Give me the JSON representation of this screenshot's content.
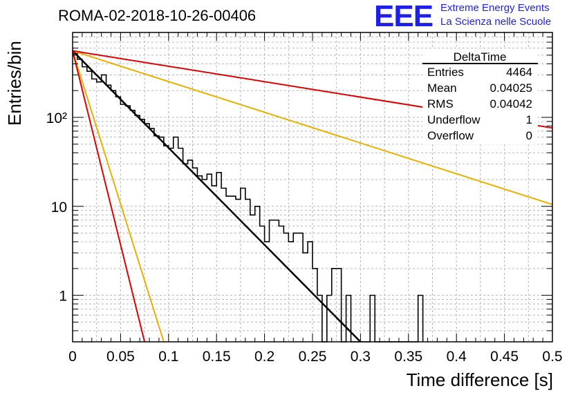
{
  "title": "ROMA-02-2018-10-26-00406",
  "logo": {
    "text": "EEE",
    "line1": "Extreme Energy Events",
    "line2": "La Scienza nelle Scuole",
    "color": "#1f1fe8"
  },
  "stats_box": {
    "name": "DeltaTime",
    "rows": [
      {
        "label": "Entries",
        "value": "4464"
      },
      {
        "label": "Mean",
        "value": "0.04025"
      },
      {
        "label": "RMS",
        "value": "0.04042"
      },
      {
        "label": "Underflow",
        "value": "1"
      },
      {
        "label": "Overflow",
        "value": "0"
      }
    ]
  },
  "chart_data": {
    "type": "histogram",
    "title": "ROMA-02-2018-10-26-00406",
    "xlabel": "Time difference [s]",
    "ylabel": "Entries/bin",
    "xlim": [
      0,
      0.5
    ],
    "ylim": [
      0.3,
      900
    ],
    "log_y": true,
    "grid": true,
    "x_ticks": [
      "0",
      "0.05",
      "0.1",
      "0.15",
      "0.2",
      "0.25",
      "0.3",
      "0.35",
      "0.4",
      "0.45",
      "0.5"
    ],
    "y_ticks": [
      "1",
      "10",
      "10²"
    ],
    "bin_width": 0.005,
    "bins": [
      {
        "x0": 0.0,
        "y": 520
      },
      {
        "x0": 0.005,
        "y": 450
      },
      {
        "x0": 0.01,
        "y": 370
      },
      {
        "x0": 0.015,
        "y": 330
      },
      {
        "x0": 0.02,
        "y": 270
      },
      {
        "x0": 0.025,
        "y": 250
      },
      {
        "x0": 0.03,
        "y": 300
      },
      {
        "x0": 0.035,
        "y": 230
      },
      {
        "x0": 0.04,
        "y": 200
      },
      {
        "x0": 0.045,
        "y": 170
      },
      {
        "x0": 0.05,
        "y": 140
      },
      {
        "x0": 0.055,
        "y": 135
      },
      {
        "x0": 0.06,
        "y": 120
      },
      {
        "x0": 0.065,
        "y": 105
      },
      {
        "x0": 0.07,
        "y": 95
      },
      {
        "x0": 0.075,
        "y": 85
      },
      {
        "x0": 0.08,
        "y": 75
      },
      {
        "x0": 0.085,
        "y": 62
      },
      {
        "x0": 0.09,
        "y": 60
      },
      {
        "x0": 0.095,
        "y": 48
      },
      {
        "x0": 0.1,
        "y": 45
      },
      {
        "x0": 0.105,
        "y": 60
      },
      {
        "x0": 0.11,
        "y": 45
      },
      {
        "x0": 0.115,
        "y": 30
      },
      {
        "x0": 0.12,
        "y": 33
      },
      {
        "x0": 0.125,
        "y": 27
      },
      {
        "x0": 0.13,
        "y": 22
      },
      {
        "x0": 0.135,
        "y": 20
      },
      {
        "x0": 0.14,
        "y": 23
      },
      {
        "x0": 0.145,
        "y": 17
      },
      {
        "x0": 0.15,
        "y": 24
      },
      {
        "x0": 0.155,
        "y": 16
      },
      {
        "x0": 0.16,
        "y": 13
      },
      {
        "x0": 0.165,
        "y": 13
      },
      {
        "x0": 0.17,
        "y": 12
      },
      {
        "x0": 0.175,
        "y": 16
      },
      {
        "x0": 0.18,
        "y": 12
      },
      {
        "x0": 0.185,
        "y": 8
      },
      {
        "x0": 0.19,
        "y": 10
      },
      {
        "x0": 0.195,
        "y": 6
      },
      {
        "x0": 0.2,
        "y": 4
      },
      {
        "x0": 0.205,
        "y": 7
      },
      {
        "x0": 0.21,
        "y": 7
      },
      {
        "x0": 0.215,
        "y": 6
      },
      {
        "x0": 0.22,
        "y": 5
      },
      {
        "x0": 0.225,
        "y": 4
      },
      {
        "x0": 0.23,
        "y": 5
      },
      {
        "x0": 0.235,
        "y": 5
      },
      {
        "x0": 0.24,
        "y": 3
      },
      {
        "x0": 0.245,
        "y": 4
      },
      {
        "x0": 0.25,
        "y": 2
      },
      {
        "x0": 0.255,
        "y": 1
      },
      {
        "x0": 0.26,
        "y": 0
      },
      {
        "x0": 0.265,
        "y": 1
      },
      {
        "x0": 0.27,
        "y": 2
      },
      {
        "x0": 0.275,
        "y": 2
      },
      {
        "x0": 0.28,
        "y": 0
      },
      {
        "x0": 0.285,
        "y": 1
      },
      {
        "x0": 0.29,
        "y": 0
      },
      {
        "x0": 0.295,
        "y": 0
      },
      {
        "x0": 0.3,
        "y": 0
      },
      {
        "x0": 0.305,
        "y": 0
      },
      {
        "x0": 0.31,
        "y": 1
      },
      {
        "x0": 0.315,
        "y": 0
      },
      {
        "x0": 0.32,
        "y": 0
      },
      {
        "x0": 0.325,
        "y": 0
      },
      {
        "x0": 0.33,
        "y": 0
      },
      {
        "x0": 0.335,
        "y": 0
      },
      {
        "x0": 0.34,
        "y": 0
      },
      {
        "x0": 0.345,
        "y": 0
      },
      {
        "x0": 0.35,
        "y": 0
      },
      {
        "x0": 0.355,
        "y": 0
      },
      {
        "x0": 0.36,
        "y": 1
      }
    ],
    "fit_lines": [
      {
        "color": "#000000",
        "x0": 0.0,
        "y0": 560,
        "x1": 0.3,
        "y1": 0.3
      },
      {
        "color": "#e8b000",
        "x0": 0.0,
        "y0": 560,
        "x1": 0.095,
        "y1": 0.3
      },
      {
        "color": "#dd0000",
        "x0": 0.0,
        "y0": 560,
        "x1": 0.075,
        "y1": 0.3
      },
      {
        "color": "#e8b000",
        "x0": 0.0,
        "y0": 560,
        "x1": 0.5,
        "y1": 10.5
      },
      {
        "color": "#dd0000",
        "x0": 0.0,
        "y0": 560,
        "x1": 0.5,
        "y1": 76
      }
    ]
  }
}
